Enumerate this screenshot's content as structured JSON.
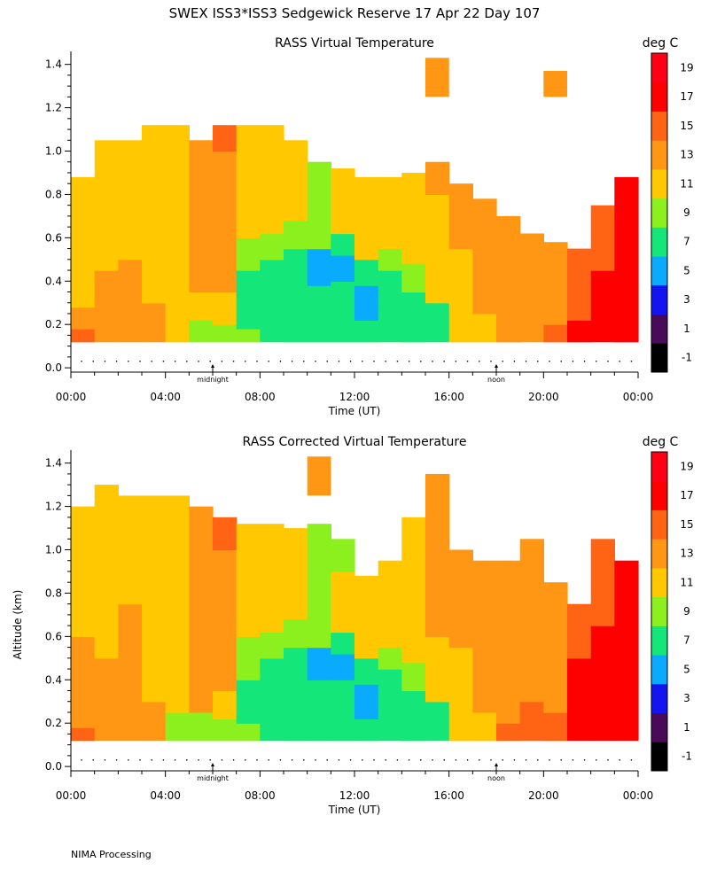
{
  "page": {
    "title": "SWEX ISS3*ISS3 Sedgewick Reserve  17 Apr 22 Day 107",
    "footer": "NIMA Processing"
  },
  "chart_data": [
    {
      "type": "heatmap",
      "title": "RASS Virtual Temperature",
      "xlabel": "Time (UT)",
      "ylabel": "",
      "x_ticks": [
        "00:00",
        "04:00",
        "08:00",
        "12:00",
        "16:00",
        "20:00",
        "00:00"
      ],
      "x_tick_values": [
        0,
        4,
        8,
        12,
        16,
        20,
        24
      ],
      "y_ticks": [
        "0.0",
        "0.2",
        "0.4",
        "0.6",
        "0.8",
        "1.0",
        "1.2",
        "1.4"
      ],
      "y_tick_values": [
        0.0,
        0.2,
        0.4,
        0.6,
        0.8,
        1.0,
        1.2,
        1.4
      ],
      "xlim": [
        0,
        24
      ],
      "ylim": [
        -0.02,
        1.46
      ],
      "markers": [
        {
          "label": "midnight",
          "x": 6
        },
        {
          "label": "noon",
          "x": 18
        }
      ],
      "colorbar": {
        "label": "deg C",
        "ticks": [
          "-1",
          "1",
          "3",
          "5",
          "7",
          "9",
          "11",
          "13",
          "15",
          "17",
          "19"
        ],
        "colors": [
          "#000000",
          "#4a0a5a",
          "#1414f0",
          "#0aaaff",
          "#14e67a",
          "#8cf01e",
          "#ffc800",
          "#ff9614",
          "#ff6414",
          "#ff0000",
          "#ff0014"
        ]
      },
      "columns": [
        {
          "x": 0.5,
          "top": 0.88,
          "bands": [
            [
              0.12,
              0.18,
              15
            ],
            [
              0.18,
              0.28,
              13
            ],
            [
              0.28,
              0.88,
              11
            ]
          ]
        },
        {
          "x": 1.5,
          "top": 1.05,
          "bands": [
            [
              0.12,
              0.45,
              13
            ],
            [
              0.45,
              1.05,
              11
            ]
          ]
        },
        {
          "x": 2.5,
          "top": 1.05,
          "bands": [
            [
              0.12,
              0.5,
              13
            ],
            [
              0.5,
              1.05,
              11
            ]
          ]
        },
        {
          "x": 3.5,
          "top": 1.12,
          "bands": [
            [
              0.12,
              0.3,
              13
            ],
            [
              0.3,
              0.75,
              11
            ],
            [
              0.75,
              1.12,
              11
            ]
          ]
        },
        {
          "x": 4.5,
          "top": 1.12,
          "bands": [
            [
              0.12,
              0.2,
              11
            ],
            [
              0.2,
              0.9,
              11
            ],
            [
              0.9,
              1.12,
              11
            ]
          ]
        },
        {
          "x": 5.5,
          "top": 1.05,
          "bands": [
            [
              0.12,
              0.22,
              9
            ],
            [
              0.22,
              0.35,
              11
            ],
            [
              0.35,
              1.05,
              13
            ]
          ]
        },
        {
          "x": 6.5,
          "top": 1.12,
          "bands": [
            [
              0.12,
              0.2,
              9
            ],
            [
              0.2,
              0.35,
              11
            ],
            [
              0.35,
              1.0,
              13
            ],
            [
              1.0,
              1.12,
              15
            ]
          ]
        },
        {
          "x": 7.5,
          "top": 1.12,
          "bands": [
            [
              0.12,
              0.18,
              9
            ],
            [
              0.18,
              0.45,
              7
            ],
            [
              0.45,
              0.6,
              9
            ],
            [
              0.6,
              1.12,
              11
            ]
          ]
        },
        {
          "x": 8.5,
          "top": 1.12,
          "bands": [
            [
              0.12,
              0.5,
              7
            ],
            [
              0.5,
              0.62,
              9
            ],
            [
              0.62,
              1.12,
              11
            ]
          ]
        },
        {
          "x": 9.5,
          "top": 1.05,
          "bands": [
            [
              0.12,
              0.55,
              7
            ],
            [
              0.55,
              0.68,
              9
            ],
            [
              0.68,
              1.05,
              11
            ]
          ]
        },
        {
          "x": 10.5,
          "top": 0.95,
          "bands": [
            [
              0.12,
              0.38,
              7
            ],
            [
              0.38,
              0.55,
              5
            ],
            [
              0.55,
              0.7,
              9
            ],
            [
              0.7,
              0.95,
              9
            ]
          ]
        },
        {
          "x": 11.5,
          "top": 0.92,
          "bands": [
            [
              0.12,
              0.4,
              7
            ],
            [
              0.4,
              0.52,
              5
            ],
            [
              0.52,
              0.62,
              7
            ],
            [
              0.62,
              0.75,
              11
            ],
            [
              0.75,
              0.92,
              11
            ]
          ]
        },
        {
          "x": 12.5,
          "top": 0.88,
          "bands": [
            [
              0.12,
              0.22,
              7
            ],
            [
              0.22,
              0.38,
              5
            ],
            [
              0.38,
              0.5,
              7
            ],
            [
              0.5,
              0.88,
              11
            ]
          ]
        },
        {
          "x": 13.5,
          "top": 0.88,
          "bands": [
            [
              0.12,
              0.45,
              7
            ],
            [
              0.45,
              0.55,
              9
            ],
            [
              0.55,
              0.88,
              11
            ]
          ]
        },
        {
          "x": 14.5,
          "top": 0.9,
          "bands": [
            [
              0.12,
              0.35,
              7
            ],
            [
              0.35,
              0.48,
              9
            ],
            [
              0.48,
              0.9,
              11
            ]
          ]
        },
        {
          "x": 15.5,
          "top": 0.95,
          "bands": [
            [
              0.12,
              0.3,
              7
            ],
            [
              0.3,
              0.55,
              11
            ],
            [
              0.55,
              0.8,
              11
            ],
            [
              0.8,
              0.95,
              13
            ]
          ]
        },
        {
          "x": 16.5,
          "top": 0.85,
          "bands": [
            [
              0.12,
              0.55,
              11
            ],
            [
              0.55,
              0.85,
              13
            ]
          ]
        },
        {
          "x": 17.5,
          "top": 0.78,
          "bands": [
            [
              0.12,
              0.25,
              11
            ],
            [
              0.25,
              0.78,
              13
            ]
          ]
        },
        {
          "x": 18.5,
          "top": 0.7,
          "bands": [
            [
              0.12,
              0.2,
              13
            ],
            [
              0.2,
              0.7,
              13
            ]
          ]
        },
        {
          "x": 19.5,
          "top": 0.62,
          "bands": [
            [
              0.12,
              0.3,
              13
            ],
            [
              0.3,
              0.62,
              13
            ]
          ]
        },
        {
          "x": 20.5,
          "top": 0.58,
          "bands": [
            [
              0.12,
              0.2,
              15
            ],
            [
              0.2,
              0.58,
              13
            ]
          ]
        },
        {
          "x": 21.5,
          "top": 0.55,
          "bands": [
            [
              0.12,
              0.22,
              17
            ],
            [
              0.22,
              0.55,
              15
            ]
          ]
        },
        {
          "x": 22.5,
          "top": 0.75,
          "bands": [
            [
              0.12,
              0.45,
              17
            ],
            [
              0.45,
              0.75,
              15
            ]
          ]
        },
        {
          "x": 23.5,
          "top": 0.88,
          "bands": [
            [
              0.12,
              0.88,
              17
            ]
          ]
        }
      ],
      "patches": [
        {
          "x0": 15.0,
          "x1": 16.0,
          "y0": 1.25,
          "y1": 1.43,
          "value": 13
        },
        {
          "x0": 20.0,
          "x1": 21.0,
          "y0": 1.25,
          "y1": 1.37,
          "value": 13
        }
      ]
    },
    {
      "type": "heatmap",
      "title": "RASS Corrected Virtual Temperature",
      "xlabel": "Time (UT)",
      "ylabel": "Altitude (km)",
      "x_ticks": [
        "00:00",
        "04:00",
        "08:00",
        "12:00",
        "16:00",
        "20:00",
        "00:00"
      ],
      "x_tick_values": [
        0,
        4,
        8,
        12,
        16,
        20,
        24
      ],
      "y_ticks": [
        "0.0",
        "0.2",
        "0.4",
        "0.6",
        "0.8",
        "1.0",
        "1.2",
        "1.4"
      ],
      "y_tick_values": [
        0.0,
        0.2,
        0.4,
        0.6,
        0.8,
        1.0,
        1.2,
        1.4
      ],
      "xlim": [
        0,
        24
      ],
      "ylim": [
        -0.02,
        1.46
      ],
      "markers": [
        {
          "label": "midnight",
          "x": 6
        },
        {
          "label": "noon",
          "x": 18
        }
      ],
      "colorbar": {
        "label": "deg C",
        "ticks": [
          "-1",
          "1",
          "3",
          "5",
          "7",
          "9",
          "11",
          "13",
          "15",
          "17",
          "19"
        ],
        "colors": [
          "#000000",
          "#4a0a5a",
          "#1414f0",
          "#0aaaff",
          "#14e67a",
          "#8cf01e",
          "#ffc800",
          "#ff9614",
          "#ff6414",
          "#ff0000",
          "#ff0014"
        ]
      },
      "columns": [
        {
          "x": 0.5,
          "top": 1.2,
          "bands": [
            [
              0.12,
              0.18,
              15
            ],
            [
              0.18,
              0.6,
              13
            ],
            [
              0.6,
              1.2,
              11
            ]
          ]
        },
        {
          "x": 1.5,
          "top": 1.3,
          "bands": [
            [
              0.12,
              0.5,
              13
            ],
            [
              0.5,
              1.3,
              11
            ]
          ]
        },
        {
          "x": 2.5,
          "top": 1.25,
          "bands": [
            [
              0.12,
              0.5,
              13
            ],
            [
              0.5,
              0.75,
              13
            ],
            [
              0.75,
              1.25,
              11
            ]
          ]
        },
        {
          "x": 3.5,
          "top": 1.25,
          "bands": [
            [
              0.12,
              0.3,
              13
            ],
            [
              0.3,
              1.25,
              11
            ]
          ]
        },
        {
          "x": 4.5,
          "top": 1.25,
          "bands": [
            [
              0.12,
              0.25,
              9
            ],
            [
              0.25,
              1.25,
              11
            ]
          ]
        },
        {
          "x": 5.5,
          "top": 1.2,
          "bands": [
            [
              0.12,
              0.25,
              9
            ],
            [
              0.25,
              1.0,
              13
            ],
            [
              1.0,
              1.2,
              13
            ]
          ]
        },
        {
          "x": 6.5,
          "top": 1.15,
          "bands": [
            [
              0.12,
              0.22,
              9
            ],
            [
              0.22,
              0.35,
              11
            ],
            [
              0.35,
              1.0,
              13
            ],
            [
              1.0,
              1.15,
              15
            ]
          ]
        },
        {
          "x": 7.5,
          "top": 1.12,
          "bands": [
            [
              0.12,
              0.2,
              9
            ],
            [
              0.2,
              0.4,
              7
            ],
            [
              0.4,
              0.6,
              9
            ],
            [
              0.6,
              1.12,
              11
            ]
          ]
        },
        {
          "x": 8.5,
          "top": 1.12,
          "bands": [
            [
              0.12,
              0.5,
              7
            ],
            [
              0.5,
              0.62,
              9
            ],
            [
              0.62,
              1.12,
              11
            ]
          ]
        },
        {
          "x": 9.5,
          "top": 1.1,
          "bands": [
            [
              0.12,
              0.55,
              7
            ],
            [
              0.55,
              0.68,
              9
            ],
            [
              0.68,
              1.1,
              11
            ]
          ]
        },
        {
          "x": 10.5,
          "top": 1.12,
          "bands": [
            [
              0.12,
              0.4,
              7
            ],
            [
              0.4,
              0.55,
              5
            ],
            [
              0.55,
              0.7,
              9
            ],
            [
              0.7,
              1.12,
              9
            ]
          ]
        },
        {
          "x": 11.5,
          "top": 1.05,
          "bands": [
            [
              0.12,
              0.4,
              7
            ],
            [
              0.4,
              0.52,
              5
            ],
            [
              0.52,
              0.62,
              7
            ],
            [
              0.62,
              0.9,
              11
            ],
            [
              0.9,
              1.05,
              9
            ]
          ]
        },
        {
          "x": 12.5,
          "top": 0.88,
          "bands": [
            [
              0.12,
              0.22,
              7
            ],
            [
              0.22,
              0.38,
              5
            ],
            [
              0.38,
              0.5,
              7
            ],
            [
              0.5,
              0.88,
              11
            ]
          ]
        },
        {
          "x": 13.5,
          "top": 0.95,
          "bands": [
            [
              0.12,
              0.45,
              7
            ],
            [
              0.45,
              0.55,
              9
            ],
            [
              0.55,
              0.95,
              11
            ]
          ]
        },
        {
          "x": 14.5,
          "top": 1.15,
          "bands": [
            [
              0.12,
              0.35,
              7
            ],
            [
              0.35,
              0.48,
              9
            ],
            [
              0.48,
              1.15,
              11
            ]
          ]
        },
        {
          "x": 15.5,
          "top": 1.35,
          "bands": [
            [
              0.12,
              0.3,
              7
            ],
            [
              0.3,
              0.6,
              11
            ],
            [
              0.6,
              1.35,
              13
            ]
          ]
        },
        {
          "x": 16.5,
          "top": 1.0,
          "bands": [
            [
              0.12,
              0.55,
              11
            ],
            [
              0.55,
              1.0,
              13
            ]
          ]
        },
        {
          "x": 17.5,
          "top": 0.95,
          "bands": [
            [
              0.12,
              0.25,
              11
            ],
            [
              0.25,
              0.95,
              13
            ]
          ]
        },
        {
          "x": 18.5,
          "top": 0.95,
          "bands": [
            [
              0.12,
              0.2,
              15
            ],
            [
              0.2,
              0.95,
              13
            ]
          ]
        },
        {
          "x": 19.5,
          "top": 1.05,
          "bands": [
            [
              0.12,
              0.3,
              15
            ],
            [
              0.3,
              1.05,
              13
            ]
          ]
        },
        {
          "x": 20.5,
          "top": 0.85,
          "bands": [
            [
              0.12,
              0.25,
              15
            ],
            [
              0.25,
              0.85,
              13
            ]
          ]
        },
        {
          "x": 21.5,
          "top": 0.75,
          "bands": [
            [
              0.12,
              0.5,
              17
            ],
            [
              0.5,
              0.75,
              15
            ]
          ]
        },
        {
          "x": 22.5,
          "top": 1.05,
          "bands": [
            [
              0.12,
              0.65,
              17
            ],
            [
              0.65,
              1.05,
              15
            ]
          ]
        },
        {
          "x": 23.5,
          "top": 0.95,
          "bands": [
            [
              0.12,
              0.95,
              17
            ]
          ]
        }
      ],
      "patches": [
        {
          "x0": 10.0,
          "x1": 11.0,
          "y0": 1.25,
          "y1": 1.43,
          "value": 13
        }
      ]
    }
  ]
}
